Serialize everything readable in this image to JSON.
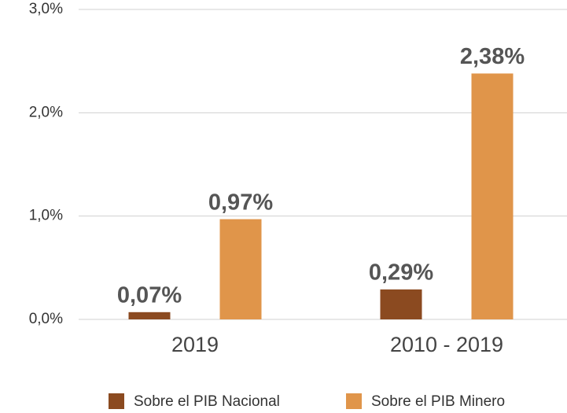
{
  "chart_data": {
    "type": "bar",
    "categories": [
      "2019",
      "2010 - 2019"
    ],
    "series": [
      {
        "name": "Sobre el PIB Nacional",
        "color": "#8b4a20",
        "values": [
          0.07,
          0.29
        ],
        "value_labels": [
          "0,07%",
          "0,29%"
        ]
      },
      {
        "name": "Sobre el PIB Minero",
        "color": "#e0954a",
        "values": [
          0.97,
          2.38
        ],
        "value_labels": [
          "0,97%",
          "2,38%"
        ]
      }
    ],
    "ylim": [
      0,
      3
    ],
    "yticks": [
      {
        "value": 0,
        "label": "0,0%"
      },
      {
        "value": 1,
        "label": "1,0%"
      },
      {
        "value": 2,
        "label": "2,0%"
      },
      {
        "value": 3,
        "label": "3,0%"
      }
    ],
    "grid": true,
    "legend": "bottom"
  }
}
